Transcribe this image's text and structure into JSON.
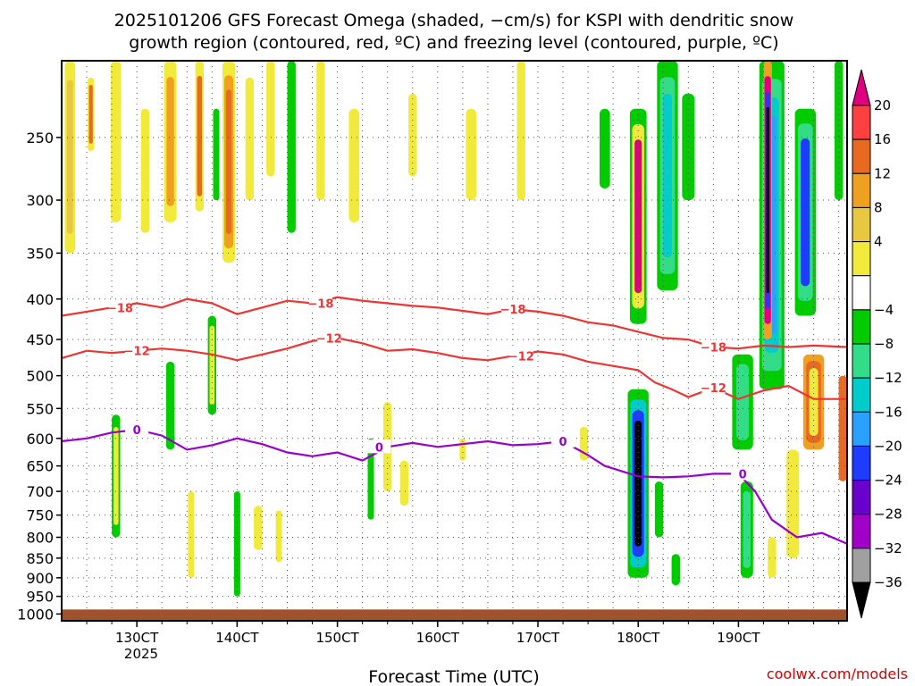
{
  "chart_data": {
    "type": "heatmap",
    "title_line1": "2025101206 GFS Forecast Omega (shaded, −cm/s) for KSPI with dendritic snow",
    "title_line2": "growth region (contoured, red, ºC) and freezing level (contoured, purple, ºC)",
    "xlabel": "Forecast Time (UTC)",
    "ylabel": "",
    "credit": "coolwx.com/models",
    "x_range_hours": [
      0,
      188
    ],
    "x_ticks": [
      {
        "label": "130CT",
        "hour": 18
      },
      {
        "label": "140CT",
        "hour": 42
      },
      {
        "label": "150CT",
        "hour": 66
      },
      {
        "label": "160CT",
        "hour": 90
      },
      {
        "label": "170CT",
        "hour": 114
      },
      {
        "label": "180CT",
        "hour": 138
      },
      {
        "label": "190CT",
        "hour": 162
      }
    ],
    "x_year_label": "2025",
    "y_ticks_hpa": [
      250,
      300,
      350,
      400,
      450,
      500,
      550,
      600,
      650,
      700,
      750,
      800,
      850,
      900,
      950,
      1000
    ],
    "y_range_hpa": [
      200,
      1020
    ],
    "colorbar": {
      "labels": [
        "20",
        "16",
        "12",
        "8",
        "4",
        "−4",
        "−8",
        "−12",
        "−16",
        "−20",
        "−24",
        "−28",
        "−32",
        "−36"
      ],
      "bins": [
        {
          "color": "#e0007f"
        },
        {
          "color": "#ff4040"
        },
        {
          "color": "#e86a20"
        },
        {
          "color": "#f0a020"
        },
        {
          "color": "#e8c840"
        },
        {
          "color": "#f2ea3a"
        },
        {
          "color": "#ffffff"
        },
        {
          "color": "#00cc00"
        },
        {
          "color": "#33dd88"
        },
        {
          "color": "#00cccc"
        },
        {
          "color": "#2aa0ff"
        },
        {
          "color": "#1e3cff"
        },
        {
          "color": "#6a00cc"
        },
        {
          "color": "#a000c8"
        },
        {
          "color": "#a0a0a0"
        },
        {
          "color": "#000000"
        }
      ]
    },
    "contours": [
      {
        "name": "minus18-line",
        "label": "−18",
        "color": "#ee3333",
        "points": [
          [
            0,
            420
          ],
          [
            6,
            415
          ],
          [
            12,
            410
          ],
          [
            18,
            405
          ],
          [
            24,
            410
          ],
          [
            30,
            400
          ],
          [
            36,
            405
          ],
          [
            42,
            418
          ],
          [
            48,
            410
          ],
          [
            54,
            402
          ],
          [
            60,
            405
          ],
          [
            66,
            398
          ],
          [
            72,
            402
          ],
          [
            78,
            405
          ],
          [
            84,
            408
          ],
          [
            90,
            410
          ],
          [
            96,
            414
          ],
          [
            102,
            418
          ],
          [
            108,
            412
          ],
          [
            114,
            415
          ],
          [
            120,
            420
          ],
          [
            126,
            428
          ],
          [
            132,
            432
          ],
          [
            138,
            440
          ],
          [
            144,
            448
          ],
          [
            150,
            450
          ],
          [
            156,
            460
          ],
          [
            162,
            462
          ],
          [
            168,
            458
          ],
          [
            174,
            460
          ],
          [
            180,
            458
          ],
          [
            188,
            460
          ]
        ],
        "label_hours": [
          14,
          62,
          108,
          156
        ]
      },
      {
        "name": "minus12-line",
        "label": "−12",
        "color": "#ee3333",
        "points": [
          [
            0,
            475
          ],
          [
            6,
            465
          ],
          [
            12,
            468
          ],
          [
            18,
            465
          ],
          [
            24,
            462
          ],
          [
            30,
            465
          ],
          [
            36,
            470
          ],
          [
            42,
            478
          ],
          [
            48,
            470
          ],
          [
            54,
            462
          ],
          [
            60,
            452
          ],
          [
            66,
            448
          ],
          [
            72,
            455
          ],
          [
            78,
            465
          ],
          [
            84,
            463
          ],
          [
            90,
            468
          ],
          [
            96,
            475
          ],
          [
            102,
            478
          ],
          [
            108,
            472
          ],
          [
            114,
            466
          ],
          [
            120,
            470
          ],
          [
            126,
            480
          ],
          [
            132,
            486
          ],
          [
            138,
            492
          ],
          [
            142,
            510
          ],
          [
            146,
            520
          ],
          [
            150,
            532
          ],
          [
            156,
            518
          ],
          [
            162,
            535
          ],
          [
            168,
            522
          ],
          [
            174,
            515
          ],
          [
            180,
            535
          ],
          [
            188,
            535
          ]
        ],
        "label_hours": [
          18,
          64,
          110,
          156
        ]
      },
      {
        "name": "freezing-level-line",
        "label": "0",
        "color": "#9900cc",
        "points": [
          [
            0,
            605
          ],
          [
            6,
            600
          ],
          [
            12,
            590
          ],
          [
            18,
            585
          ],
          [
            24,
            595
          ],
          [
            30,
            620
          ],
          [
            36,
            612
          ],
          [
            42,
            600
          ],
          [
            48,
            610
          ],
          [
            54,
            625
          ],
          [
            60,
            632
          ],
          [
            66,
            625
          ],
          [
            72,
            640
          ],
          [
            78,
            615
          ],
          [
            84,
            608
          ],
          [
            90,
            615
          ],
          [
            96,
            610
          ],
          [
            102,
            605
          ],
          [
            108,
            612
          ],
          [
            114,
            610
          ],
          [
            120,
            605
          ],
          [
            126,
            630
          ],
          [
            130,
            650
          ],
          [
            138,
            670
          ],
          [
            144,
            672
          ],
          [
            150,
            670
          ],
          [
            156,
            665
          ],
          [
            162,
            665
          ],
          [
            166,
            700
          ],
          [
            170,
            760
          ],
          [
            176,
            800
          ],
          [
            182,
            790
          ],
          [
            188,
            815
          ]
        ],
        "label_hours": [
          18,
          76,
          120,
          163
        ]
      }
    ],
    "omega_regions": [
      {
        "hour": 2,
        "top": 200,
        "bottom": 350,
        "w": 2.5,
        "colors": [
          "#f2ea3a",
          "#e8c840"
        ]
      },
      {
        "hour": 7,
        "top": 210,
        "bottom": 260,
        "w": 1.5,
        "colors": [
          "#f2ea3a",
          "#e86a20"
        ]
      },
      {
        "hour": 13,
        "top": 200,
        "bottom": 320,
        "w": 2.5,
        "colors": [
          "#f2ea3a"
        ]
      },
      {
        "hour": 20,
        "top": 230,
        "bottom": 330,
        "w": 2,
        "colors": [
          "#f2ea3a"
        ]
      },
      {
        "hour": 26,
        "top": 200,
        "bottom": 320,
        "w": 3,
        "colors": [
          "#f2ea3a",
          "#f0a020"
        ]
      },
      {
        "hour": 33,
        "top": 200,
        "bottom": 310,
        "w": 2,
        "colors": [
          "#f2ea3a",
          "#e86a20"
        ]
      },
      {
        "hour": 37,
        "top": 230,
        "bottom": 300,
        "w": 1.5,
        "colors": [
          "#00cc00"
        ]
      },
      {
        "hour": 40,
        "top": 200,
        "bottom": 360,
        "w": 3,
        "colors": [
          "#f2ea3a",
          "#f0a020",
          "#e86a20"
        ]
      },
      {
        "hour": 45,
        "top": 210,
        "bottom": 300,
        "w": 2,
        "colors": [
          "#f2ea3a"
        ]
      },
      {
        "hour": 50,
        "top": 200,
        "bottom": 280,
        "w": 2,
        "colors": [
          "#f2ea3a"
        ]
      },
      {
        "hour": 55,
        "top": 200,
        "bottom": 330,
        "w": 2,
        "colors": [
          "#00cc00"
        ]
      },
      {
        "hour": 62,
        "top": 200,
        "bottom": 300,
        "w": 2,
        "colors": [
          "#f2ea3a"
        ]
      },
      {
        "hour": 70,
        "top": 230,
        "bottom": 320,
        "w": 2.5,
        "colors": [
          "#f2ea3a"
        ]
      },
      {
        "hour": 84,
        "top": 220,
        "bottom": 280,
        "w": 2,
        "colors": [
          "#f2ea3a"
        ]
      },
      {
        "hour": 98,
        "top": 230,
        "bottom": 300,
        "w": 2.5,
        "colors": [
          "#f2ea3a"
        ]
      },
      {
        "hour": 110,
        "top": 200,
        "bottom": 300,
        "w": 2,
        "colors": [
          "#f2ea3a"
        ]
      },
      {
        "hour": 130,
        "top": 230,
        "bottom": 290,
        "w": 2.5,
        "colors": [
          "#00cc00"
        ]
      },
      {
        "hour": 138,
        "top": 230,
        "bottom": 430,
        "w": 4,
        "colors": [
          "#00cc00",
          "#f2ea3a",
          "#e0007f"
        ]
      },
      {
        "hour": 145,
        "top": 200,
        "bottom": 390,
        "w": 5,
        "colors": [
          "#00cc00",
          "#33dd88",
          "#00cccc"
        ]
      },
      {
        "hour": 150,
        "top": 220,
        "bottom": 300,
        "w": 3,
        "colors": [
          "#00cc00"
        ]
      },
      {
        "hour": 170,
        "top": 200,
        "bottom": 520,
        "w": 6,
        "colors": [
          "#00cc00",
          "#33dd88",
          "#00cccc",
          "#2aa0ff"
        ]
      },
      {
        "hour": 169,
        "top": 200,
        "bottom": 450,
        "w": 2,
        "colors": [
          "#f0a020",
          "#e0007f",
          "#1e3cff",
          "#000000"
        ]
      },
      {
        "hour": 178,
        "top": 230,
        "bottom": 420,
        "w": 5,
        "colors": [
          "#00cc00",
          "#33dd88",
          "#1e3cff"
        ]
      },
      {
        "hour": 180,
        "top": 470,
        "bottom": 620,
        "w": 5,
        "colors": [
          "#f0a020",
          "#e86a20",
          "#f2ea3a"
        ]
      },
      {
        "hour": 186,
        "top": 200,
        "bottom": 300,
        "w": 2,
        "colors": [
          "#00cc00"
        ]
      },
      {
        "hour": 13,
        "top": 560,
        "bottom": 800,
        "w": 2,
        "colors": [
          "#00cc00",
          "#f2ea3a"
        ]
      },
      {
        "hour": 26,
        "top": 480,
        "bottom": 620,
        "w": 2,
        "colors": [
          "#00cc00"
        ]
      },
      {
        "hour": 31,
        "top": 700,
        "bottom": 900,
        "w": 1.5,
        "colors": [
          "#f2ea3a"
        ]
      },
      {
        "hour": 36,
        "top": 420,
        "bottom": 560,
        "w": 2,
        "colors": [
          "#00cc00",
          "#f2ea3a"
        ]
      },
      {
        "hour": 42,
        "top": 700,
        "bottom": 950,
        "w": 1.5,
        "colors": [
          "#00cc00"
        ]
      },
      {
        "hour": 47,
        "top": 730,
        "bottom": 830,
        "w": 2,
        "colors": [
          "#f2ea3a"
        ]
      },
      {
        "hour": 52,
        "top": 740,
        "bottom": 860,
        "w": 1.5,
        "colors": [
          "#f2ea3a"
        ]
      },
      {
        "hour": 74,
        "top": 600,
        "bottom": 760,
        "w": 1.5,
        "colors": [
          "#00cc00"
        ]
      },
      {
        "hour": 78,
        "top": 540,
        "bottom": 700,
        "w": 2,
        "colors": [
          "#f2ea3a"
        ]
      },
      {
        "hour": 82,
        "top": 640,
        "bottom": 730,
        "w": 2,
        "colors": [
          "#f2ea3a"
        ]
      },
      {
        "hour": 96,
        "top": 600,
        "bottom": 640,
        "w": 1.5,
        "colors": [
          "#f2ea3a"
        ]
      },
      {
        "hour": 125,
        "top": 580,
        "bottom": 640,
        "w": 2,
        "colors": [
          "#f2ea3a"
        ]
      },
      {
        "hour": 138,
        "top": 520,
        "bottom": 900,
        "w": 5,
        "colors": [
          "#00cc00",
          "#00cccc",
          "#1e3cff",
          "#000000"
        ]
      },
      {
        "hour": 143,
        "top": 680,
        "bottom": 800,
        "w": 2,
        "colors": [
          "#00cc00"
        ]
      },
      {
        "hour": 147,
        "top": 840,
        "bottom": 920,
        "w": 2,
        "colors": [
          "#00cc00"
        ]
      },
      {
        "hour": 163,
        "top": 470,
        "bottom": 620,
        "w": 5,
        "colors": [
          "#00cc00",
          "#33dd88"
        ]
      },
      {
        "hour": 164,
        "top": 680,
        "bottom": 900,
        "w": 3,
        "colors": [
          "#00cc00",
          "#33dd88"
        ]
      },
      {
        "hour": 170,
        "top": 800,
        "bottom": 900,
        "w": 2,
        "colors": [
          "#f2ea3a"
        ]
      },
      {
        "hour": 175,
        "top": 620,
        "bottom": 850,
        "w": 3,
        "colors": [
          "#f2ea3a"
        ]
      },
      {
        "hour": 187,
        "top": 500,
        "bottom": 680,
        "w": 2,
        "colors": [
          "#e86a20"
        ]
      }
    ],
    "ground_band_color": "#a0522d"
  }
}
